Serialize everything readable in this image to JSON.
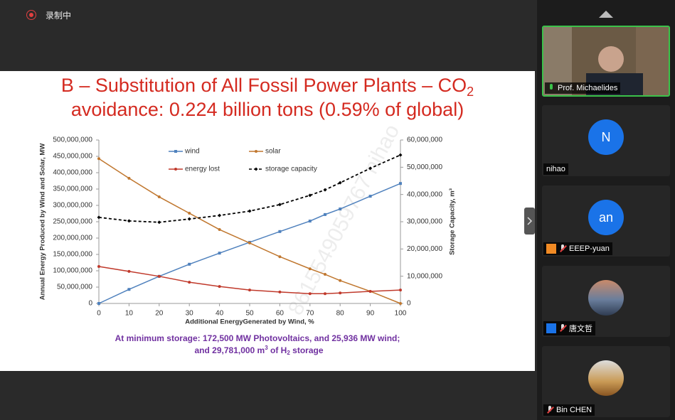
{
  "recording_label": "录制中",
  "slide": {
    "title": [
      "B – Substitution of All Fossil Power Plants – CO",
      "2",
      "avoidance: 0.224 billion tons (0.59% of global)"
    ],
    "caption": [
      "At minimum storage: 172,500 MW Photovoltaics, and 25,936 MW wind;",
      "and 29,781,000 m",
      "3",
      " of H",
      "2",
      " storage"
    ],
    "watermark": "8615549059767 nihao"
  },
  "chart_data": {
    "type": "line",
    "x_label": "Additional EnergyGenerated by Wind, %",
    "y_label": "Annual Energy Produced by Wind and Solar, MW",
    "y2_label": "Storage Capacity, m³",
    "x": [
      0,
      10,
      20,
      30,
      40,
      50,
      60,
      70,
      75,
      80,
      90,
      100
    ],
    "xlim": [
      0,
      100
    ],
    "xticks": [
      0,
      10,
      20,
      30,
      40,
      50,
      60,
      70,
      80,
      90,
      100
    ],
    "ylim": [
      0,
      500000000
    ],
    "yticks": [
      0,
      {
        "value": 50000000,
        "label": "50,000,000"
      },
      {
        "value": 100000000,
        "label": "100,000,000"
      },
      {
        "value": 150000000,
        "label": "150,000,000"
      },
      {
        "value": 200000000,
        "label": "200,000,000"
      },
      {
        "value": 250000000,
        "label": "250,000,000"
      },
      {
        "value": 300000000,
        "label": "300,000,000"
      },
      {
        "value": 350000000,
        "label": "350,000,000"
      },
      {
        "value": 400000000,
        "label": "400,000,000"
      },
      {
        "value": 450000000,
        "label": "450,000,000"
      },
      {
        "value": 500000000,
        "label": "500,000,000"
      }
    ],
    "y2lim": [
      0,
      60000000
    ],
    "y2ticks": [
      0,
      {
        "value": 10000000,
        "label": "10,000,000"
      },
      {
        "value": 20000000,
        "label": "20,000,000"
      },
      {
        "value": 30000000,
        "label": "30,000,000"
      },
      {
        "value": 40000000,
        "label": "40,000,000"
      },
      {
        "value": 50000000,
        "label": "50,000,000"
      },
      {
        "value": 60000000,
        "label": "60,000,000"
      }
    ],
    "grid": false,
    "legend": "upper left",
    "series": [
      {
        "name": "wind",
        "color": "#4f81bd",
        "marker": "square",
        "values": [
          0,
          43000000,
          83000000,
          120000000,
          154000000,
          187000000,
          220000000,
          252000000,
          272000000,
          289000000,
          328000000,
          367000000
        ]
      },
      {
        "name": "solar",
        "color": "#c0772f",
        "marker": "circle",
        "values": [
          443000000,
          383000000,
          326000000,
          276000000,
          226000000,
          185000000,
          143000000,
          106000000,
          89000000,
          70000000,
          37000000,
          0
        ]
      },
      {
        "name": "energy lost",
        "color": "#c0392b",
        "marker": "circle",
        "values": [
          113000000,
          98000000,
          83000000,
          65000000,
          52000000,
          41000000,
          35000000,
          30000000,
          30000000,
          32000000,
          37000000,
          41000000
        ]
      },
      {
        "name": "storage capacity",
        "color": "#000000",
        "marker": "diamond",
        "dashed": true,
        "axis": "y2",
        "values": [
          31600000,
          30300000,
          29800000,
          31000000,
          32300000,
          33900000,
          36300000,
          39700000,
          41700000,
          44300000,
          49600000,
          54500000
        ]
      }
    ]
  },
  "participants": [
    {
      "name": "Prof. Michaelides"
    },
    {
      "avatar": "N",
      "name": "nihao"
    },
    {
      "avatar": "an",
      "name": "EEEP-yuan"
    },
    {
      "name": "唐文哲"
    },
    {
      "name": "Bin CHEN"
    }
  ]
}
